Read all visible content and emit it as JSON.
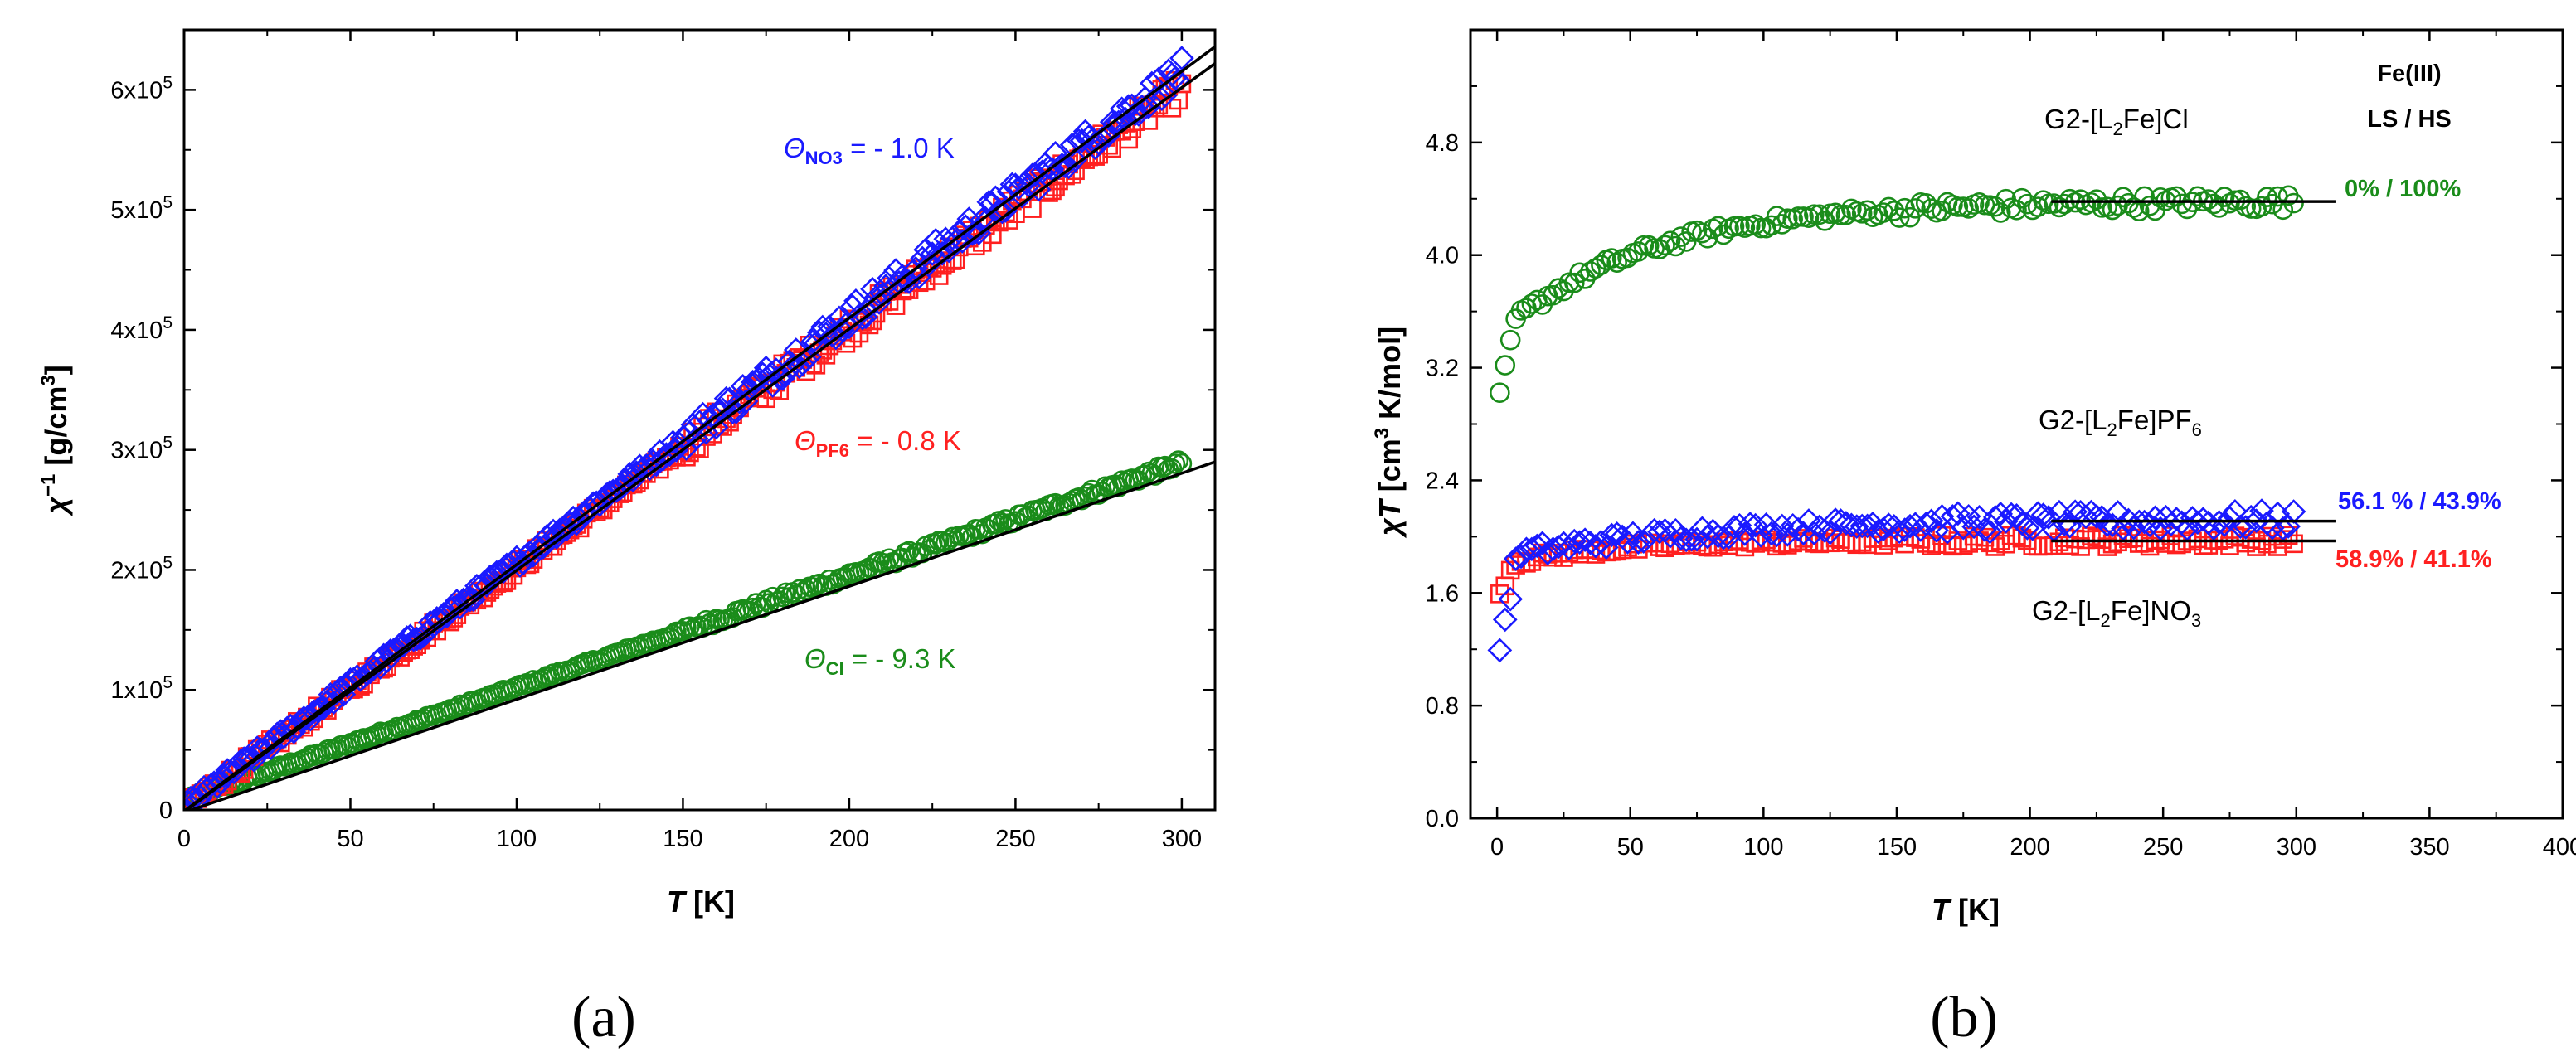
{
  "chart_data": [
    {
      "type": "scatter",
      "panel_label": "(a)",
      "xlabel_var": "T",
      "xlabel_unit": " [K]",
      "ylabel_var": "χ",
      "ylabel_sup": "−1",
      "ylabel_unit": " [g/cm",
      "ylabel_unit_sup": "3",
      "ylabel_unit_end": "]",
      "xlim": [
        0,
        310
      ],
      "ylim": [
        0,
        650000
      ],
      "xticks": [
        0,
        50,
        100,
        150,
        200,
        250,
        300
      ],
      "xtick_labels": [
        "0",
        "50",
        "100",
        "150",
        "200",
        "250",
        "300"
      ],
      "yticks": [
        0,
        100000,
        200000,
        300000,
        400000,
        500000,
        600000
      ],
      "ytick_labels": [
        {
          "base": "0",
          "exp": ""
        },
        {
          "base": "1x10",
          "exp": "5"
        },
        {
          "base": "2x10",
          "exp": "5"
        },
        {
          "base": "3x10",
          "exp": "5"
        },
        {
          "base": "4x10",
          "exp": "5"
        },
        {
          "base": "5x10",
          "exp": "5"
        },
        {
          "base": "6x10",
          "exp": "5"
        }
      ],
      "series": [
        {
          "name": "NO3",
          "marker": "diamond",
          "color": "#1a1aff",
          "fit_slope": 2045,
          "fit_intercept": 2000,
          "x_range": [
            1,
            300
          ],
          "scatter_amp": 5000
        },
        {
          "name": "PF6",
          "marker": "square",
          "color": "#ff2020",
          "fit_slope": 2000,
          "fit_intercept": 1600,
          "x_range": [
            1,
            300
          ],
          "scatter_amp": 5000
        },
        {
          "name": "Cl",
          "marker": "circle",
          "color": "#1a8c1a",
          "fit_slope": 935,
          "fit_intercept": 8700,
          "x_range": [
            2,
            300
          ],
          "scatter_amp": 1500
        }
      ],
      "fit_lines": [
        {
          "x": [
            0,
            310
          ],
          "y": [
            -1000,
            636000
          ]
        },
        {
          "x": [
            0,
            310
          ],
          "y": [
            -1500,
            622000
          ]
        },
        {
          "x": [
            0,
            310
          ],
          "y": [
            -2000,
            290000
          ]
        }
      ],
      "annotations": [
        {
          "theta": "Θ",
          "sub": "NO3",
          "text": " = - 1.0 K",
          "color": "#1a1aff"
        },
        {
          "theta": "Θ",
          "sub": "PF6",
          "text": " = - 0.8 K",
          "color": "#ff2020"
        },
        {
          "theta": "Θ",
          "sub": "Cl",
          "text": " = - 9.3 K",
          "color": "#1a8c1a"
        }
      ]
    },
    {
      "type": "scatter",
      "panel_label": "(b)",
      "xlabel_var": "T",
      "xlabel_unit": " [K]",
      "ylabel_var": "χT",
      "ylabel_unit": " [cm",
      "ylabel_unit_sup": "3",
      "ylabel_unit_end": " K/mol]",
      "xlim": [
        -10,
        400
      ],
      "ylim": [
        0,
        5.6
      ],
      "xticks": [
        0,
        50,
        100,
        150,
        200,
        250,
        300,
        350,
        400
      ],
      "xtick_labels": [
        "0",
        "50",
        "100",
        "150",
        "200",
        "250",
        "300",
        "350",
        "400"
      ],
      "yticks": [
        0,
        0.8,
        1.6,
        2.4,
        3.2,
        4.0,
        4.8
      ],
      "ytick_labels": [
        "0.0",
        "0.8",
        "1.6",
        "2.4",
        "3.2",
        "4.0",
        "4.8"
      ],
      "series": [
        {
          "name": "G2-[L2Fe]Cl",
          "marker": "circle",
          "color": "#1a8c1a",
          "curve": "cl",
          "plateau": 4.38,
          "scatter_amp": 0.04
        },
        {
          "name": "G2-[L2Fe]NO3",
          "marker": "diamond",
          "color": "#1a1aff",
          "curve": "no3",
          "plateau": 2.12,
          "scatter_amp": 0.05
        },
        {
          "name": "G2-[L2Fe]PF6",
          "marker": "square",
          "color": "#ff2020",
          "curve": "pf6",
          "plateau": 1.97,
          "scatter_amp": 0.03
        }
      ],
      "fit_lines": [
        {
          "x": [
            208,
            315
          ],
          "y": [
            4.38,
            4.38
          ]
        },
        {
          "x": [
            208,
            315
          ],
          "y": [
            2.11,
            2.11
          ]
        },
        {
          "x": [
            208,
            315
          ],
          "y": [
            1.97,
            1.97
          ]
        }
      ],
      "header": {
        "line1": "Fe(III)",
        "line2": "LS / HS"
      },
      "compound_labels": [
        {
          "prefix": "G2-[L",
          "sub": "2",
          "mid": "Fe]",
          "tail": "Cl",
          "tail_sub": ""
        },
        {
          "prefix": "G2-[L",
          "sub": "2",
          "mid": "Fe]",
          "tail": "PF",
          "tail_sub": "6"
        },
        {
          "prefix": "G2-[L",
          "sub": "2",
          "mid": "Fe]",
          "tail": "NO",
          "tail_sub": "3"
        }
      ],
      "ratio_labels": [
        {
          "text": "0% / 100%",
          "color": "#1a8c1a"
        },
        {
          "text": "56.1 % / 43.9%",
          "color": "#1a1aff"
        },
        {
          "text": "58.9% / 41.1%",
          "color": "#ff2020"
        }
      ]
    }
  ]
}
